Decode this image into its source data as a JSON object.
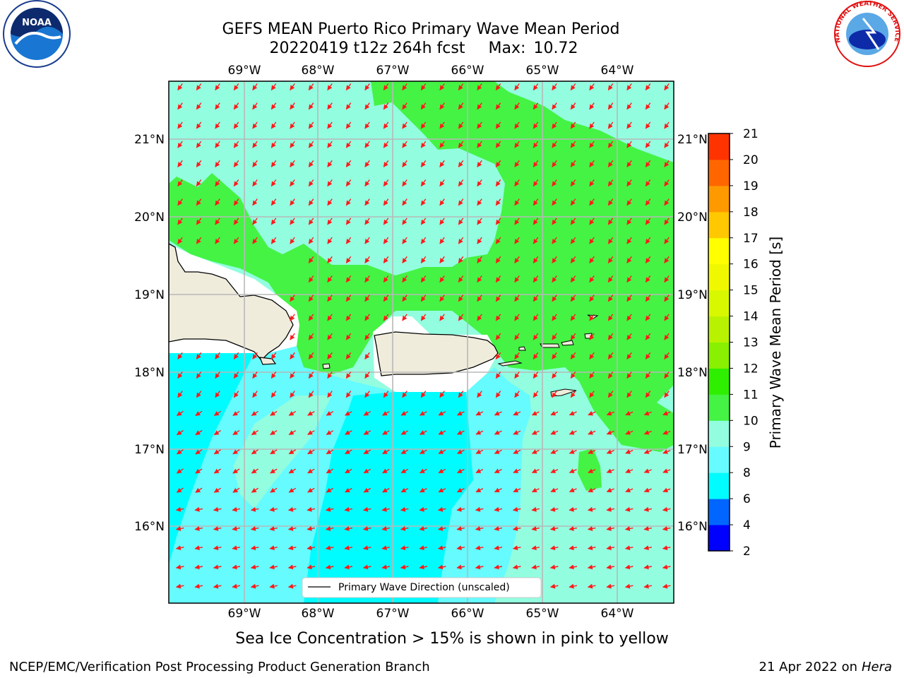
{
  "title": {
    "line1": "GEFS MEAN Puerto Rico Primary Wave Mean Period",
    "line2_prefix": "20220419 t12z 264h fcst",
    "max_label": "Max:",
    "max_value": "10.72"
  },
  "map": {
    "lon_labels": [
      "69°W",
      "68°W",
      "67°W",
      "66°W",
      "65°W",
      "64°W"
    ],
    "lat_labels": [
      "21°N",
      "20°N",
      "19°N",
      "18°N",
      "17°N",
      "16°N"
    ],
    "colors": {
      "land": "#efecdc",
      "ocean_light": "#93fde0",
      "green": "#44f344",
      "cyan_mid": "#65fbff",
      "cyan": "#00fcff",
      "white_gap": "#ffffff",
      "arrow": "#ff1a1a",
      "grid": "#b8b8b8"
    },
    "arrow_direction": "toward-southwest/west"
  },
  "legend": {
    "label": "Primary Wave Direction (unscaled)"
  },
  "colorbar": {
    "label": "Primary Wave Mean Period [s]",
    "ticks": [
      "2",
      "4",
      "6",
      "8",
      "9",
      "10",
      "11",
      "12",
      "13",
      "14",
      "15",
      "16",
      "17",
      "18",
      "19",
      "20",
      "21"
    ],
    "colors": [
      "#0000ff",
      "#0066ff",
      "#00fcff",
      "#65fbff",
      "#93fde0",
      "#44f344",
      "#2fef00",
      "#88f000",
      "#b8f200",
      "#d8f800",
      "#f0f800",
      "#ffff00",
      "#ffc800",
      "#ff9900",
      "#ff6600",
      "#ff3300",
      "#ff0000"
    ]
  },
  "note": "Sea Ice Concentration > 15% is shown in pink to yellow",
  "footer": {
    "left": "NCEP/EMC/Verification Post Processing Product Generation Branch",
    "right_date": "21 Apr 2022 on",
    "right_host": "Hera"
  },
  "logos": {
    "left": "NOAA",
    "right": "NATIONAL WEATHER SERVICE"
  }
}
